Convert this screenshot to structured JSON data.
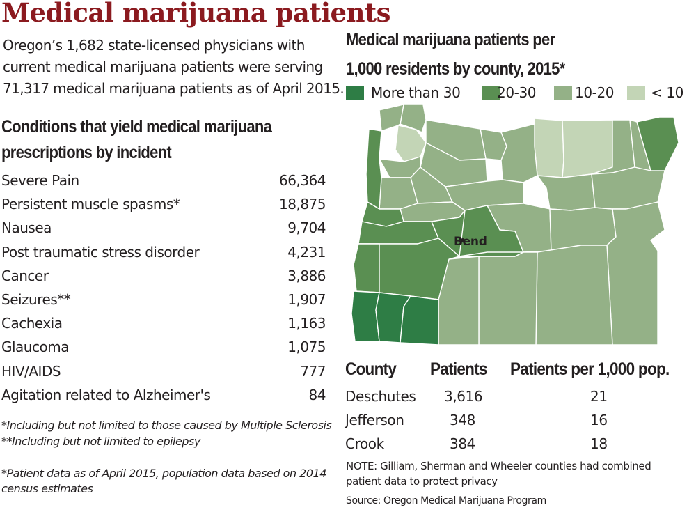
{
  "title": "Medical marijuana patients",
  "intro_lines": [
    "Oregon’s 1,682 state-licensed physicians with",
    "current medical marijuana patients were serving",
    "71,317 medical marijuana patients as of April 2015."
  ],
  "conditions_heading_lines": [
    "Conditions that yield medical marijuana",
    "prescriptions by incident"
  ],
  "conditions": [
    {
      "name": "Severe Pain",
      "count": "66,364"
    },
    {
      "name": "Persistent muscle spasms*",
      "count": "18,875"
    },
    {
      "name": "Nausea",
      "count": "9,704"
    },
    {
      "name": "Post traumatic stress disorder",
      "count": "4,231"
    },
    {
      "name": "Cancer",
      "count": "3,886"
    },
    {
      "name": "Seizures**",
      "count": "1,907"
    },
    {
      "name": "Cachexia",
      "count": "1,163"
    },
    {
      "name": "Glaucoma",
      "count": "1,075"
    },
    {
      "name": "HIV/AIDS",
      "count": "777"
    },
    {
      "name": "Agitation related to Alzheimer's",
      "count": "84"
    }
  ],
  "footnotes": {
    "f1": "*Including but not limited to those caused by Multiple Sclerosis",
    "f2": "**Including but not limited to epilepsy",
    "f3_lines": [
      "*Patient data as of April 2015, population data based on 2014",
      "census estimates"
    ]
  },
  "map": {
    "heading_lines": [
      "Medical marijuana patients per",
      "1,000 residents by county, 2015*"
    ],
    "legend": [
      {
        "label": "More than 30",
        "color": "#2e7d45"
      },
      {
        "label": "20-30",
        "color": "#5a8f52"
      },
      {
        "label": "10-20",
        "color": "#94b187"
      },
      {
        "label": "< 10",
        "color": "#c3d5b6"
      }
    ],
    "city_label": "Bend"
  },
  "county_table": {
    "headers": {
      "county": "County",
      "patients": "Patients",
      "rate": "Patients per 1,000 pop."
    },
    "rows": [
      {
        "county": "Deschutes",
        "patients": "3,616",
        "rate": "21"
      },
      {
        "county": "Jefferson",
        "patients": "348",
        "rate": "16"
      },
      {
        "county": "Crook",
        "patients": "384",
        "rate": "18"
      }
    ]
  },
  "note_lines": [
    "NOTE: Gilliam, Sherman and Wheeler counties had combined",
    "patient data to protect privacy"
  ],
  "source": "Source: Oregon Medical Marijuana Program"
}
